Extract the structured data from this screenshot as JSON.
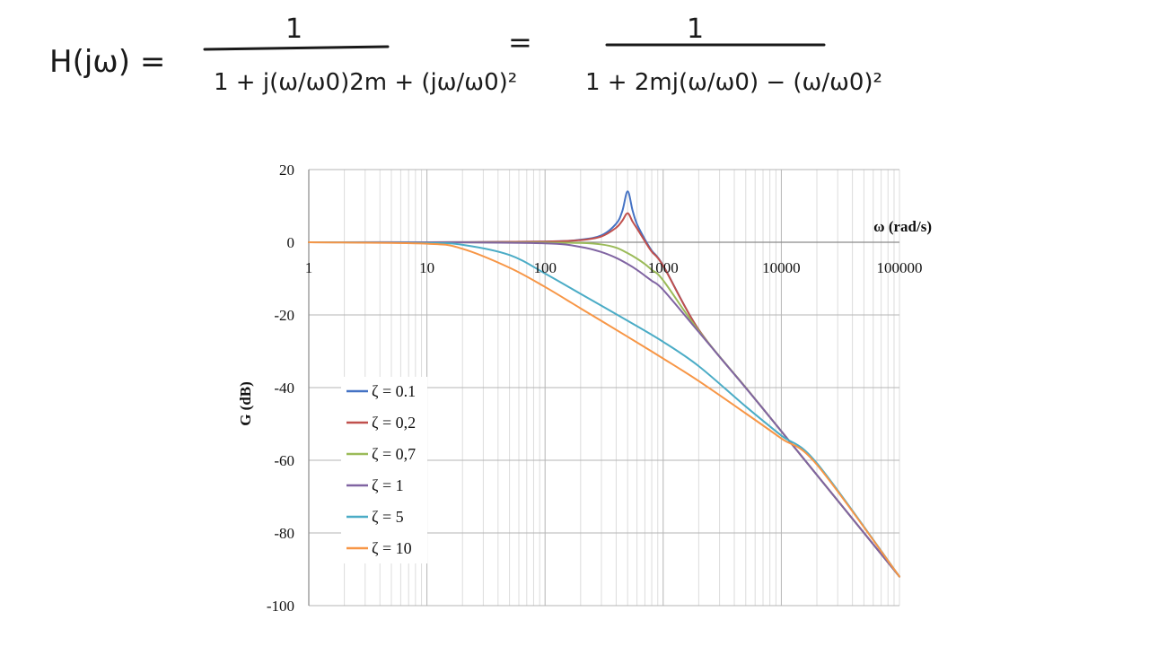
{
  "formula": {
    "lhs": "H(jω) =",
    "numerator1": "1",
    "denominator1": "1 + j(ω/ω0)2m + (jω/ω0)²",
    "equals": "=",
    "numerator2": "1",
    "denominator2": "1 + 2mj(ω/ω0) − (ω/ω0)²"
  },
  "chart_data": {
    "type": "line",
    "xscale": "log",
    "xlim": [
      1,
      100000
    ],
    "ylim": [
      -100,
      20
    ],
    "xlabel": "ω (rad/s)",
    "ylabel": "G (dB)",
    "x_ticks": [
      "1",
      "10",
      "100",
      "1000",
      "10000",
      "100000"
    ],
    "y_ticks": [
      "20",
      "0",
      "-20",
      "-40",
      "-60",
      "-80",
      "-100"
    ],
    "grid": true,
    "legend_position": "bottom-left",
    "natural_frequency_rad_s": 500,
    "series": [
      {
        "name": "ζ = 0.1",
        "color": "#4472C4",
        "zeta": 0.1,
        "x": [
          1,
          10,
          100,
          200,
          300,
          400,
          450,
          500,
          550,
          600,
          700,
          800,
          1000,
          2000,
          5000,
          10000,
          100000
        ],
        "y": [
          0,
          0,
          0.2,
          0.7,
          1.9,
          5.1,
          8.5,
          14.0,
          8.8,
          5.0,
          0.8,
          -2.3,
          -6.4,
          -24.1,
          -40.0,
          -52.0,
          -92.0
        ]
      },
      {
        "name": "ζ = 0,2",
        "color": "#C0504D",
        "zeta": 0.2,
        "x": [
          1,
          10,
          100,
          200,
          300,
          400,
          450,
          500,
          550,
          600,
          700,
          800,
          1000,
          2000,
          5000,
          10000,
          100000
        ],
        "y": [
          0,
          0,
          0.2,
          0.6,
          1.6,
          4.0,
          5.9,
          8.0,
          5.7,
          3.8,
          0.3,
          -2.6,
          -6.5,
          -24.1,
          -40.0,
          -52.0,
          -92.0
        ]
      },
      {
        "name": "ζ = 0,7",
        "color": "#9BBB59",
        "zeta": 0.7,
        "x": [
          1,
          10,
          100,
          200,
          300,
          400,
          500,
          600,
          700,
          800,
          1000,
          2000,
          5000,
          10000,
          100000
        ],
        "y": [
          0,
          0,
          -0.1,
          -0.2,
          -0.6,
          -1.5,
          -3.0,
          -4.5,
          -6.0,
          -7.6,
          -10.5,
          -24.4,
          -40.0,
          -52.0,
          -92.0
        ]
      },
      {
        "name": "ζ = 1",
        "color": "#8064A2",
        "zeta": 1,
        "x": [
          1,
          10,
          100,
          200,
          300,
          400,
          500,
          600,
          700,
          800,
          1000,
          2000,
          5000,
          10000,
          100000
        ],
        "y": [
          0,
          0,
          -0.3,
          -1.3,
          -2.7,
          -4.3,
          -6.0,
          -7.6,
          -9.2,
          -10.6,
          -13.1,
          -24.7,
          -40.1,
          -52.0,
          -92.0
        ]
      },
      {
        "name": "ζ = 5",
        "color": "#4BACC6",
        "zeta": 5,
        "x": [
          1,
          10,
          20,
          50,
          100,
          200,
          500,
          1000,
          2000,
          5000,
          10000,
          20000,
          100000
        ],
        "y": [
          0,
          -0.2,
          -0.7,
          -3.5,
          -8.6,
          -14.2,
          -21.6,
          -27.4,
          -34.1,
          -45.2,
          -53.2,
          -60.8,
          -92.0
        ]
      },
      {
        "name": "ζ = 10",
        "color": "#F79646",
        "zeta": 10,
        "x": [
          1,
          10,
          20,
          50,
          100,
          200,
          500,
          1000,
          2000,
          5000,
          10000,
          20000,
          100000
        ],
        "y": [
          0,
          -0.4,
          -1.8,
          -7.0,
          -12.3,
          -18.2,
          -26.0,
          -32.0,
          -38.2,
          -47.1,
          -54.0,
          -61.2,
          -92.0
        ]
      }
    ]
  }
}
